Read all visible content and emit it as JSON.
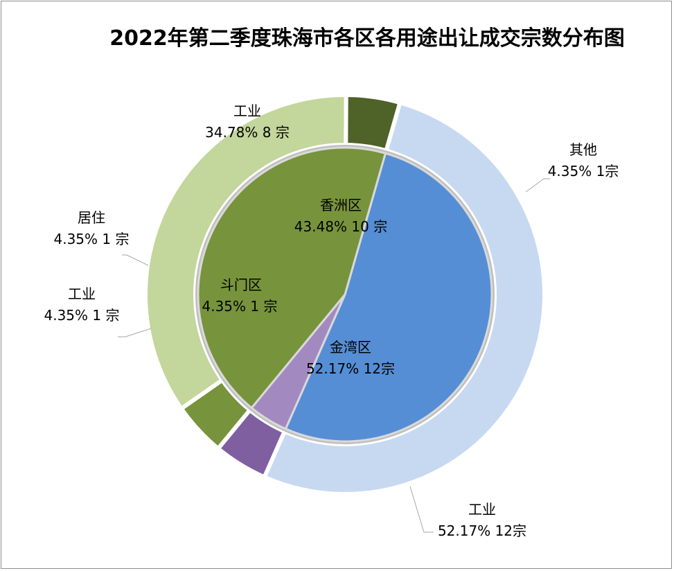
{
  "chart_data": {
    "type": "donut",
    "title": "2022年第二季度珠海市各区各用途出让成交宗数分布图",
    "inner": [
      {
        "name": "金湾区",
        "pct": "52.17%",
        "count": "12宗",
        "value": 12,
        "color": "#558ED5"
      },
      {
        "name": "斗门区",
        "pct": "4.35%",
        "count": "1 宗",
        "value": 1,
        "color": "#A28AC0"
      },
      {
        "name": "香洲区",
        "pct": "43.48%",
        "count": "10 宗",
        "value": 10,
        "color": "#77933C"
      }
    ],
    "outer": [
      {
        "name": "工业",
        "pct": "52.17%",
        "count": "12宗",
        "value": 12,
        "color": "#C6D9F1"
      },
      {
        "name": "工业",
        "pct": "4.35%",
        "count": "1 宗",
        "value": 1,
        "color": "#7F5FA0"
      },
      {
        "name": "居住",
        "pct": "4.35%",
        "count": "1 宗",
        "value": 1,
        "color": "#77933C"
      },
      {
        "name": "工业",
        "pct": "34.78%",
        "count": "8 宗",
        "value": 8,
        "color": "#C3D69B"
      },
      {
        "name": "其他",
        "pct": "4.35%",
        "count": "1宗",
        "value": 1,
        "color": "#4F6228"
      }
    ]
  }
}
